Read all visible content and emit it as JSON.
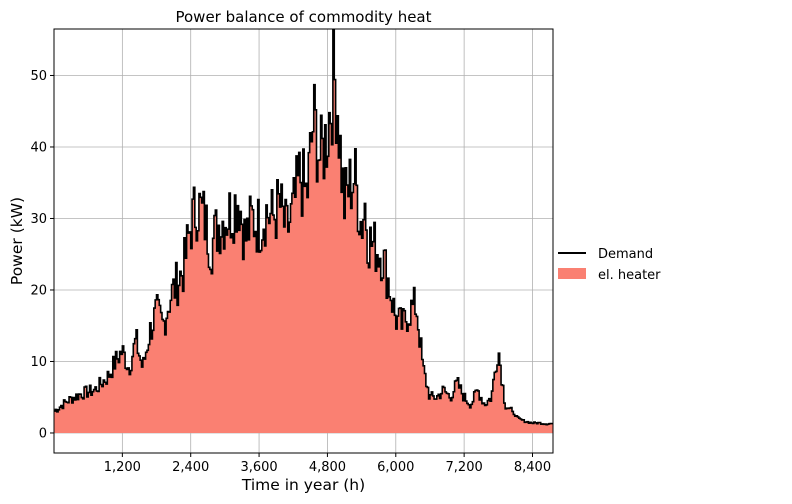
{
  "chart_data": {
    "type": "area",
    "title": "Power balance of commodity heat",
    "xlabel": "Time in year (h)",
    "ylabel": "Power (kW)",
    "xlim": [
      0,
      8760
    ],
    "ylim": [
      -2.8,
      56.5
    ],
    "xticks": [
      1200,
      2400,
      3600,
      4800,
      6000,
      7200,
      8400
    ],
    "xtick_labels": [
      "1,200",
      "2,400",
      "3,600",
      "4,800",
      "6,000",
      "7,200",
      "8,400"
    ],
    "yticks": [
      0,
      10,
      20,
      30,
      40,
      50
    ],
    "ytick_labels": [
      "0",
      "10",
      "20",
      "30",
      "40",
      "50"
    ],
    "grid": true,
    "legend_position": "right-outside",
    "step_width_h": 24,
    "series": [
      {
        "name": "Demand",
        "kind": "line",
        "color": "#000000"
      },
      {
        "name": "el. heater",
        "kind": "area",
        "color": "#fa8072"
      }
    ],
    "x": [
      0,
      240,
      480,
      720,
      960,
      1080,
      1200,
      1320,
      1440,
      1560,
      1680,
      1800,
      1920,
      2040,
      2160,
      2280,
      2400,
      2520,
      2640,
      2760,
      2880,
      3000,
      3120,
      3240,
      3360,
      3480,
      3600,
      3720,
      3840,
      3960,
      4080,
      4200,
      4320,
      4440,
      4560,
      4620,
      4680,
      4800,
      4920,
      4980,
      5040,
      5100,
      5160,
      5280,
      5400,
      5460,
      5520,
      5640,
      5760,
      5880,
      6000,
      6120,
      6240,
      6360,
      6480,
      6600,
      6720,
      6840,
      6960,
      7080,
      7200,
      7320,
      7440,
      7560,
      7680,
      7800,
      7920,
      8040,
      8160,
      8280,
      8400,
      8520,
      8640,
      8760
    ],
    "y": [
      3,
      4.5,
      5.5,
      6,
      8,
      10,
      11.5,
      9,
      13,
      9,
      14,
      17,
      15,
      19,
      21,
      23,
      29,
      32,
      30,
      26,
      29,
      30,
      31,
      33,
      27,
      30,
      29,
      31,
      30,
      32,
      28,
      31,
      36,
      33,
      44,
      41,
      38,
      42,
      50,
      46,
      38,
      32,
      34,
      36,
      29,
      32,
      27,
      26,
      25,
      21,
      16,
      15,
      17,
      18,
      9,
      5,
      5,
      6,
      5,
      7,
      5,
      4,
      6,
      4,
      5,
      12,
      4,
      3,
      2,
      1.6,
      1.4,
      1.4,
      1.3,
      1.3
    ]
  }
}
